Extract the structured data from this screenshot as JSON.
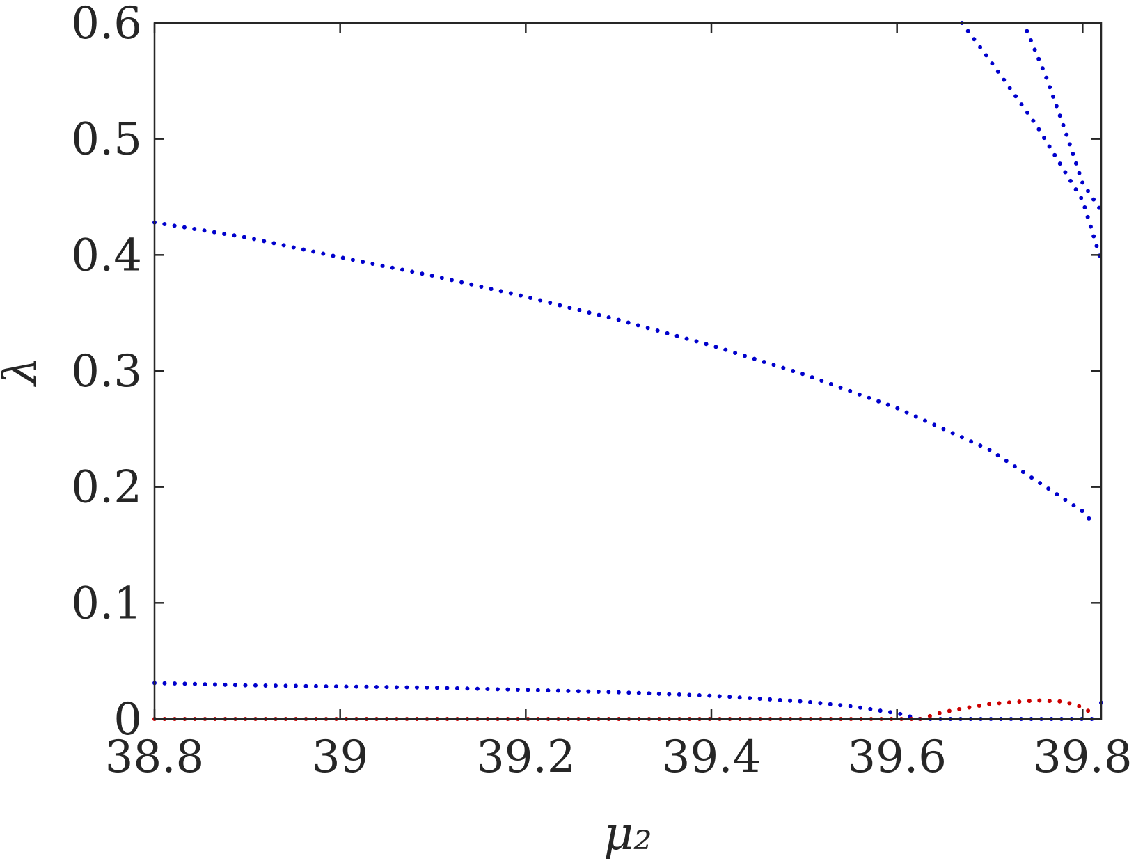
{
  "chart_data": {
    "type": "scatter",
    "title": "",
    "xlabel": "μ₂",
    "ylabel": "λ",
    "xlim": [
      38.8,
      39.82
    ],
    "ylim": [
      0,
      0.6
    ],
    "x_ticks": [
      {
        "value": 38.8,
        "label": "38.8"
      },
      {
        "value": 39.0,
        "label": "39"
      },
      {
        "value": 39.2,
        "label": "39.2"
      },
      {
        "value": 39.4,
        "label": "39.4"
      },
      {
        "value": 39.6,
        "label": "39.6"
      },
      {
        "value": 39.8,
        "label": "39.8"
      }
    ],
    "y_ticks": [
      {
        "value": 0,
        "label": "0"
      },
      {
        "value": 0.1,
        "label": "0.1"
      },
      {
        "value": 0.2,
        "label": "0.2"
      },
      {
        "value": 0.3,
        "label": "0.3"
      },
      {
        "value": 0.4,
        "label": "0.4"
      },
      {
        "value": 0.5,
        "label": "0.5"
      },
      {
        "value": 0.6,
        "label": "0.6"
      }
    ],
    "grid": false,
    "legend": "none",
    "marker": "dots",
    "series": [
      {
        "color": "#0000cc",
        "x": [
          38.8,
          38.9,
          39.0,
          39.1,
          39.2,
          39.3,
          39.4,
          39.5,
          39.6,
          39.7,
          39.8,
          39.81
        ],
        "y": [
          0.428,
          0.415,
          0.398,
          0.382,
          0.364,
          0.344,
          0.322,
          0.297,
          0.268,
          0.232,
          0.179,
          0.17
        ]
      },
      {
        "color": "#0000cc",
        "x": [
          38.8,
          38.9,
          39.0,
          39.1,
          39.2,
          39.3,
          39.4,
          39.5,
          39.55,
          39.6,
          39.625
        ],
        "y": [
          0.031,
          0.029,
          0.028,
          0.027,
          0.025,
          0.023,
          0.02,
          0.015,
          0.011,
          0.005,
          0.0
        ]
      },
      {
        "color": "#0000cc",
        "x": [
          39.625,
          39.7,
          39.8,
          39.82
        ],
        "y": [
          0.0,
          0.0,
          0.0,
          0.0
        ]
      },
      {
        "color": "#0000cc",
        "x": [
          39.67,
          39.7,
          39.75,
          39.8,
          39.82
        ],
        "y": [
          0.6,
          0.568,
          0.512,
          0.447,
          0.395
        ]
      },
      {
        "color": "#0000cc",
        "x": [
          39.74,
          39.76,
          39.78,
          39.8,
          39.82
        ],
        "y": [
          0.593,
          0.555,
          0.51,
          0.462,
          0.438
        ]
      },
      {
        "color": "#cc0000",
        "x": [
          38.8,
          39.0,
          39.2,
          39.4,
          39.6,
          39.625
        ],
        "y": [
          0.0,
          0.0,
          0.0,
          0.0,
          0.0,
          0.0
        ]
      },
      {
        "color": "#cc0000",
        "x": [
          39.625,
          39.65,
          39.7,
          39.75,
          39.78,
          39.8,
          39.81
        ],
        "y": [
          0.0,
          0.006,
          0.013,
          0.016,
          0.015,
          0.01,
          0.005
        ]
      },
      {
        "color": "#0000cc",
        "x": [
          39.82
        ],
        "y": [
          0.014
        ]
      }
    ]
  }
}
